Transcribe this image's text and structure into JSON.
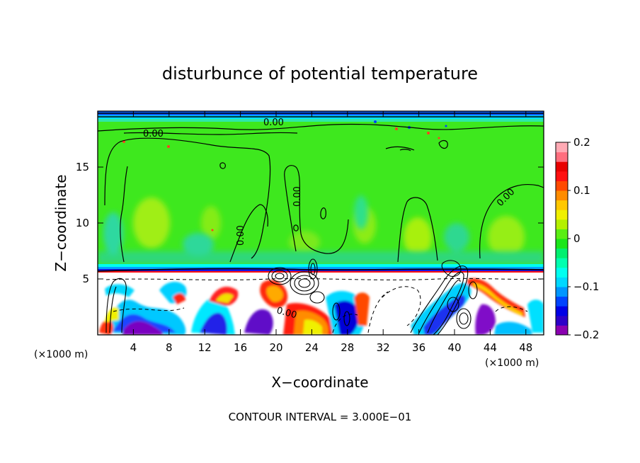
{
  "chart_data": {
    "type": "heatmap",
    "title": "disturbunce of potential temperature",
    "xlabel": "X−coordinate",
    "ylabel": "Z−coordinate",
    "x_unit_left": "(×1000 m)",
    "x_unit_right": "(×1000 m)",
    "xlim": [
      0,
      50
    ],
    "ylim": [
      0,
      20
    ],
    "x_ticks": [
      4,
      8,
      12,
      16,
      20,
      24,
      28,
      32,
      36,
      40,
      44,
      48
    ],
    "y_ticks": [
      5,
      10,
      15
    ],
    "colorbar": {
      "range": [
        -0.2,
        0.2
      ],
      "ticks": [
        {
          "value": 0.2,
          "label": "0.2"
        },
        {
          "value": 0.1,
          "label": "0.1"
        },
        {
          "value": 0,
          "label": "0"
        },
        {
          "value": -0.1,
          "label": "−0.1"
        },
        {
          "value": -0.2,
          "label": "−0.2"
        }
      ],
      "colors": [
        "#8a00b0",
        "#2d00c8",
        "#0000e6",
        "#0044ff",
        "#0096ff",
        "#00d8ff",
        "#00fff0",
        "#00ffb0",
        "#00f070",
        "#1ae61a",
        "#5aee14",
        "#b4f000",
        "#f0f000",
        "#ffc800",
        "#ff8c00",
        "#ff4a00",
        "#ff1010",
        "#e80000",
        "#ff6e7e",
        "#ffaab4"
      ]
    },
    "contour_labels": [
      "0.00",
      "0.00",
      "0.00",
      "0.00",
      "0.00",
      "0.00"
    ],
    "footer": "CONTOUR INTERVAL = 3.000E−01"
  }
}
